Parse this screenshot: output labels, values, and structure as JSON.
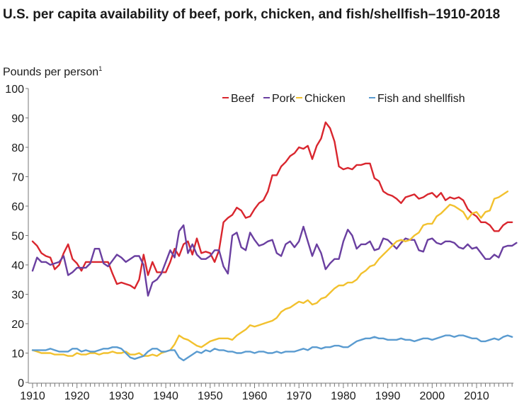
{
  "chart_data": {
    "type": "line",
    "title": "U.S. per capita availability of beef, pork, chicken, and fish/shellfish–1910-2018",
    "ylabel": "Pounds per person",
    "ylabel_footnote": "1",
    "xlabel": "",
    "ylim": [
      0,
      100
    ],
    "xlim": [
      1910,
      2018
    ],
    "yticks": [
      0,
      10,
      20,
      30,
      40,
      50,
      60,
      70,
      80,
      90,
      100
    ],
    "xticks": [
      1910,
      1920,
      1930,
      1940,
      1950,
      1960,
      1970,
      1980,
      1990,
      2000,
      2010
    ],
    "grid": false,
    "legend_position": "top-right",
    "x_start": 1910,
    "series": [
      {
        "name": "Beef",
        "color": "#d9262e",
        "values": [
          48,
          46.5,
          44,
          43,
          42.5,
          38.5,
          40,
          44,
          47,
          42,
          40.5,
          38,
          41,
          41,
          41,
          41,
          41,
          41,
          37,
          33.5,
          34,
          33.5,
          33,
          32,
          35,
          43.5,
          36.5,
          41,
          37.5,
          37.5,
          37.5,
          41,
          45.5,
          43,
          47,
          48,
          43.5,
          49,
          44,
          44.5,
          44,
          41,
          45,
          54.5,
          56,
          57,
          59.5,
          58.5,
          56,
          56.5,
          59,
          61,
          62,
          65,
          70.5,
          70.5,
          73.5,
          75,
          77,
          78,
          80,
          79.5,
          80.5,
          76,
          80.5,
          83,
          88.5,
          86.5,
          82,
          73.5,
          72.5,
          73,
          72.5,
          74,
          74,
          74.5,
          74.5,
          69.5,
          68.5,
          65,
          64,
          63.5,
          62.5,
          61,
          63,
          63.5,
          64,
          62.5,
          63,
          64,
          64.5,
          63,
          64.5,
          62,
          63,
          62.5,
          63,
          62,
          59,
          57.5,
          56.5,
          54.5,
          54.5,
          53.5,
          51.5,
          51.5,
          53.5,
          54.5,
          54.5
        ]
      },
      {
        "name": "Pork",
        "color": "#6a3fa0",
        "values": [
          38,
          42.5,
          41,
          41,
          40,
          40.5,
          41,
          43,
          36.5,
          37.5,
          39,
          39,
          39,
          40.5,
          45.5,
          45.5,
          40.5,
          39.5,
          41.5,
          43.5,
          42.5,
          41,
          42,
          43,
          43,
          40,
          29.5,
          34,
          35,
          37,
          41,
          45,
          42.5,
          51.5,
          53.5,
          44,
          47,
          43.5,
          42,
          42,
          43,
          45,
          45,
          39.5,
          37,
          50,
          51,
          46,
          45,
          51,
          48.5,
          46.5,
          47,
          48,
          48.5,
          44,
          43,
          47,
          48,
          46,
          48,
          53,
          48,
          43,
          47,
          44,
          38.5,
          40.5,
          42,
          42,
          48,
          52,
          50,
          45.5,
          47,
          47,
          48,
          45,
          45.5,
          49,
          48.5,
          47,
          45.5,
          47.5,
          49,
          48.5,
          48.5,
          45,
          44.5,
          48.5,
          49,
          47.5,
          47,
          48,
          48,
          47.5,
          46,
          45.5,
          47,
          45.5,
          46,
          44,
          42,
          42,
          43.5,
          42.5,
          46,
          46.5,
          46.5,
          47.5
        ]
      },
      {
        "name": "Chicken",
        "color": "#f2c12e",
        "values": [
          11,
          10.5,
          10,
          10,
          10,
          9.5,
          9.5,
          9.5,
          9,
          9,
          10,
          9.5,
          9.5,
          10,
          10,
          9.5,
          10,
          10,
          10.5,
          10,
          10,
          10.5,
          9.5,
          9.5,
          10,
          9,
          9,
          9.5,
          9,
          10,
          10.5,
          11,
          13,
          16,
          15,
          14.5,
          13.5,
          12.5,
          12,
          13,
          14,
          14.5,
          15,
          15,
          15,
          14.5,
          16,
          17,
          18,
          19.5,
          19,
          19.5,
          20,
          20.5,
          21,
          22,
          24,
          25,
          25.5,
          26.5,
          27.5,
          27,
          28,
          26.5,
          27,
          28.5,
          29,
          30.5,
          32,
          33,
          33,
          34,
          34,
          35,
          37,
          38,
          39.5,
          40,
          42,
          43.5,
          45,
          46.5,
          48,
          48.5,
          48,
          48.5,
          50,
          51,
          53.5,
          54,
          54,
          56.5,
          57.5,
          59,
          60.5,
          60,
          59,
          58,
          55.5,
          57.5,
          58,
          56,
          58,
          58.5,
          62.5,
          63,
          64,
          65
        ]
      },
      {
        "name": "Fish and shellfish",
        "color": "#5a9bd0",
        "values": [
          11,
          11,
          11,
          11,
          11.5,
          11,
          10.5,
          10.5,
          10.5,
          11.5,
          11.5,
          10.5,
          11,
          10.5,
          10.5,
          11,
          11.5,
          11.5,
          12,
          12,
          11.5,
          10,
          8.5,
          8,
          8.5,
          9,
          10.5,
          11.5,
          11.5,
          10.5,
          10.5,
          11,
          11,
          8.5,
          7.5,
          8.5,
          9.5,
          10.5,
          10,
          11,
          10.5,
          11.5,
          11,
          11,
          10.5,
          10.5,
          10,
          10,
          10.5,
          10.5,
          10,
          10.5,
          10.5,
          10,
          10,
          10.5,
          10,
          10.5,
          10.5,
          10.5,
          11,
          11.5,
          11,
          12,
          12,
          11.5,
          12,
          12,
          12.5,
          12.5,
          12,
          12,
          13,
          14,
          14.5,
          15,
          15,
          15.5,
          15,
          15,
          14.5,
          14.5,
          14.5,
          15,
          14.5,
          14.5,
          14,
          14.5,
          15,
          15,
          14.5,
          15,
          15.5,
          16,
          16,
          15.5,
          16,
          16,
          15.5,
          15,
          15,
          14,
          14,
          14.5,
          15,
          14.5,
          15.5,
          16,
          15.5
        ]
      }
    ]
  }
}
